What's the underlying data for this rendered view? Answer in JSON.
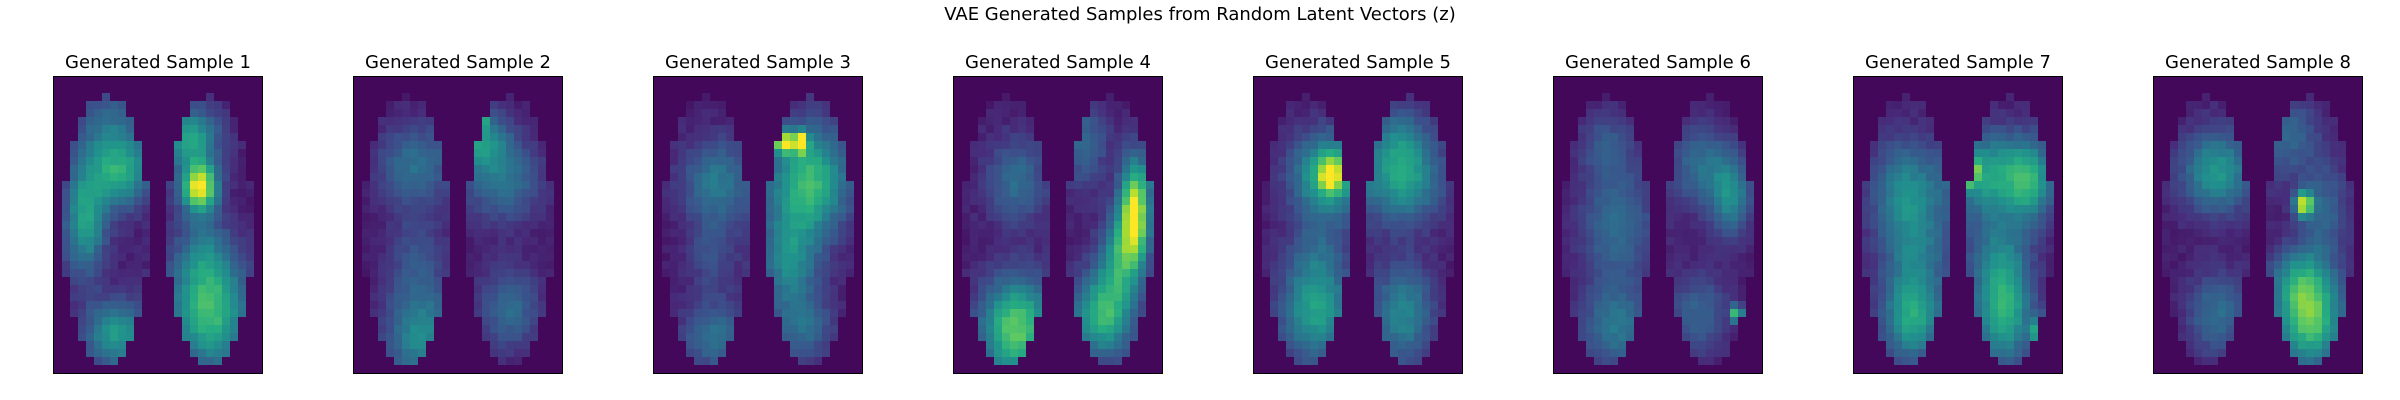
{
  "title": "VAE Generated Samples from Random Latent Vectors (z)",
  "colormap": "viridis",
  "colors": {
    "background_low": "#440154",
    "mid": "#21918c",
    "high": "#fde725"
  },
  "chart_data": [
    {
      "type": "heatmap",
      "title": "Generated Sample 1",
      "seed": 11,
      "gain": 0.9,
      "blobs": [
        [
          0.7,
          0.37,
          0.06,
          0.06,
          1.0
        ],
        [
          0.65,
          0.2,
          0.1,
          0.07,
          0.55
        ],
        [
          0.32,
          0.33,
          0.1,
          0.08,
          0.5
        ],
        [
          0.15,
          0.48,
          0.07,
          0.13,
          0.55
        ],
        [
          0.75,
          0.8,
          0.13,
          0.13,
          0.65
        ],
        [
          0.3,
          0.87,
          0.11,
          0.08,
          0.5
        ],
        [
          0.72,
          0.6,
          0.1,
          0.1,
          0.28
        ],
        [
          0.27,
          0.18,
          0.12,
          0.1,
          0.3
        ]
      ]
    },
    {
      "type": "heatmap",
      "title": "Generated Sample 2",
      "seed": 23,
      "gain": 0.75,
      "blobs": [
        [
          0.6,
          0.21,
          0.1,
          0.07,
          0.55
        ],
        [
          0.72,
          0.35,
          0.13,
          0.1,
          0.42
        ],
        [
          0.28,
          0.3,
          0.12,
          0.1,
          0.4
        ],
        [
          0.32,
          0.87,
          0.12,
          0.12,
          0.55
        ],
        [
          0.75,
          0.78,
          0.1,
          0.1,
          0.38
        ],
        [
          0.6,
          0.13,
          0.025,
          0.025,
          1.0
        ],
        [
          0.3,
          0.6,
          0.1,
          0.1,
          0.22
        ]
      ]
    },
    {
      "type": "heatmap",
      "title": "Generated Sample 3",
      "seed": 37,
      "gain": 0.85,
      "blobs": [
        [
          0.75,
          0.35,
          0.13,
          0.13,
          0.7
        ],
        [
          0.62,
          0.22,
          0.025,
          0.025,
          1.0
        ],
        [
          0.7,
          0.22,
          0.025,
          0.025,
          1.0
        ],
        [
          0.3,
          0.35,
          0.12,
          0.1,
          0.38
        ],
        [
          0.65,
          0.62,
          0.1,
          0.12,
          0.45
        ],
        [
          0.3,
          0.88,
          0.12,
          0.08,
          0.35
        ],
        [
          0.72,
          0.85,
          0.1,
          0.08,
          0.3
        ],
        [
          0.28,
          0.6,
          0.08,
          0.1,
          0.2
        ]
      ]
    },
    {
      "type": "heatmap",
      "title": "Generated Sample 4",
      "seed": 53,
      "gain": 0.9,
      "blobs": [
        [
          0.87,
          0.45,
          0.05,
          0.12,
          0.95
        ],
        [
          0.95,
          0.32,
          0.02,
          0.02,
          1.0
        ],
        [
          0.8,
          0.6,
          0.07,
          0.1,
          0.5
        ],
        [
          0.3,
          0.85,
          0.12,
          0.12,
          0.75
        ],
        [
          0.72,
          0.8,
          0.1,
          0.1,
          0.65
        ],
        [
          0.3,
          0.35,
          0.1,
          0.1,
          0.32
        ],
        [
          0.62,
          0.22,
          0.08,
          0.1,
          0.3
        ]
      ]
    },
    {
      "type": "heatmap",
      "title": "Generated Sample 5",
      "seed": 67,
      "gain": 0.85,
      "blobs": [
        [
          0.35,
          0.33,
          0.12,
          0.1,
          0.65
        ],
        [
          0.37,
          0.33,
          0.04,
          0.04,
          0.6
        ],
        [
          0.72,
          0.35,
          0.13,
          0.1,
          0.55
        ],
        [
          0.3,
          0.8,
          0.12,
          0.12,
          0.55
        ],
        [
          0.72,
          0.8,
          0.1,
          0.12,
          0.45
        ],
        [
          0.7,
          0.2,
          0.1,
          0.08,
          0.3
        ],
        [
          0.3,
          0.6,
          0.1,
          0.1,
          0.22
        ]
      ]
    },
    {
      "type": "heatmap",
      "title": "Generated Sample 6",
      "seed": 79,
      "gain": 0.72,
      "blobs": [
        [
          0.85,
          0.4,
          0.07,
          0.1,
          0.55
        ],
        [
          0.7,
          0.3,
          0.1,
          0.1,
          0.4
        ],
        [
          0.3,
          0.5,
          0.13,
          0.15,
          0.4
        ],
        [
          0.3,
          0.85,
          0.12,
          0.1,
          0.45
        ],
        [
          0.7,
          0.8,
          0.1,
          0.1,
          0.35
        ],
        [
          0.88,
          0.8,
          0.02,
          0.02,
          1.0
        ],
        [
          0.25,
          0.22,
          0.1,
          0.08,
          0.25
        ]
      ]
    },
    {
      "type": "heatmap",
      "title": "Generated Sample 7",
      "seed": 97,
      "gain": 0.82,
      "blobs": [
        [
          0.65,
          0.33,
          0.13,
          0.1,
          0.6
        ],
        [
          0.55,
          0.32,
          0.03,
          0.03,
          1.0
        ],
        [
          0.85,
          0.35,
          0.08,
          0.1,
          0.55
        ],
        [
          0.25,
          0.38,
          0.12,
          0.12,
          0.45
        ],
        [
          0.28,
          0.82,
          0.1,
          0.1,
          0.6
        ],
        [
          0.72,
          0.8,
          0.1,
          0.12,
          0.65
        ],
        [
          0.9,
          0.86,
          0.03,
          0.03,
          0.85
        ],
        [
          0.3,
          0.6,
          0.12,
          0.12,
          0.35
        ],
        [
          0.7,
          0.6,
          0.1,
          0.1,
          0.35
        ]
      ]
    },
    {
      "type": "heatmap",
      "title": "Generated Sample 8",
      "seed": 113,
      "gain": 0.82,
      "blobs": [
        [
          0.72,
          0.43,
          0.03,
          0.03,
          1.0
        ],
        [
          0.3,
          0.32,
          0.12,
          0.1,
          0.55
        ],
        [
          0.75,
          0.82,
          0.11,
          0.11,
          0.8
        ],
        [
          0.7,
          0.68,
          0.1,
          0.08,
          0.4
        ],
        [
          0.3,
          0.8,
          0.1,
          0.1,
          0.35
        ],
        [
          0.65,
          0.2,
          0.1,
          0.1,
          0.3
        ],
        [
          0.82,
          0.45,
          0.08,
          0.12,
          0.3
        ]
      ]
    }
  ]
}
